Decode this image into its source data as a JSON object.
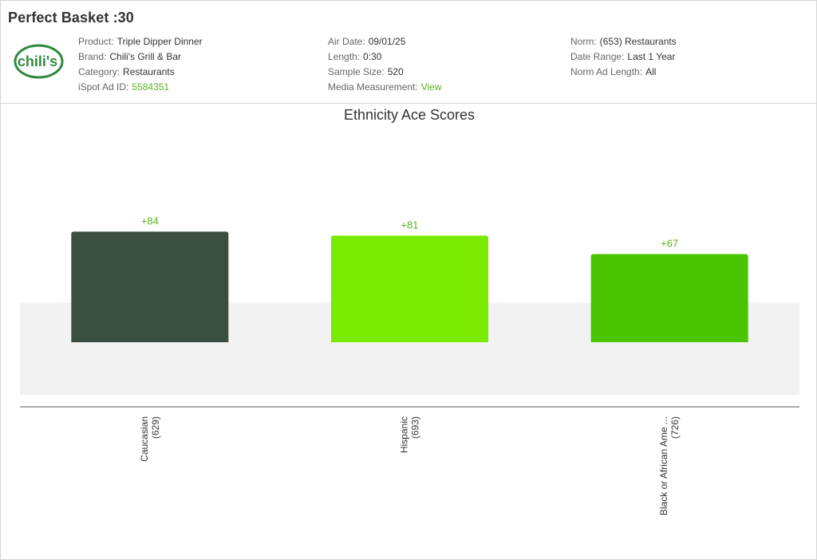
{
  "header": {
    "title": "Perfect Basket :30",
    "logo_text": "chili's",
    "details_col1": [
      {
        "label": "Product:",
        "value": "Triple Dipper Dinner",
        "link": false
      },
      {
        "label": "Brand:",
        "value": "Chili's Grill & Bar",
        "link": false
      },
      {
        "label": "Category:",
        "value": "Restaurants",
        "link": false
      },
      {
        "label": "iSpot Ad ID:",
        "value": "5584351",
        "link": true
      }
    ],
    "details_col2": [
      {
        "label": "Air Date:",
        "value": "09/01/25",
        "link": false
      },
      {
        "label": "Length:",
        "value": "0:30",
        "link": false
      },
      {
        "label": "Sample Size:",
        "value": "520",
        "link": false
      },
      {
        "label": "Media Measurement:",
        "value": "View",
        "link": true
      }
    ],
    "details_col3": [
      {
        "label": "Norm:",
        "value": "(653) Restaurants",
        "link": false
      },
      {
        "label": "Date Range:",
        "value": "Last 1 Year",
        "link": false
      },
      {
        "label": "Norm Ad Length:",
        "value": "All",
        "link": false
      }
    ]
  },
  "colors": {
    "link": "#5ab41b",
    "label_green": "#5ab41b",
    "norm_band": "#f2f2f2",
    "logo_red": "#c8102e",
    "logo_green": "#2e8b3e"
  },
  "chart_data": {
    "type": "bar",
    "title": "Ethnicity Ace Scores",
    "categories": [
      "Caucasian",
      "Hispanic",
      "Black or African Ame ..."
    ],
    "counts": [
      "(629)",
      "(693)",
      "(726)"
    ],
    "values": [
      84,
      81,
      67
    ],
    "value_labels": [
      "+84",
      "+81",
      "+67"
    ],
    "bar_colors": [
      "#3b4f41",
      "#7aea00",
      "#48c400"
    ],
    "ylim": [
      -40,
      140
    ],
    "norm_band": [
      -40,
      30
    ],
    "grid": false,
    "legend": "none"
  }
}
